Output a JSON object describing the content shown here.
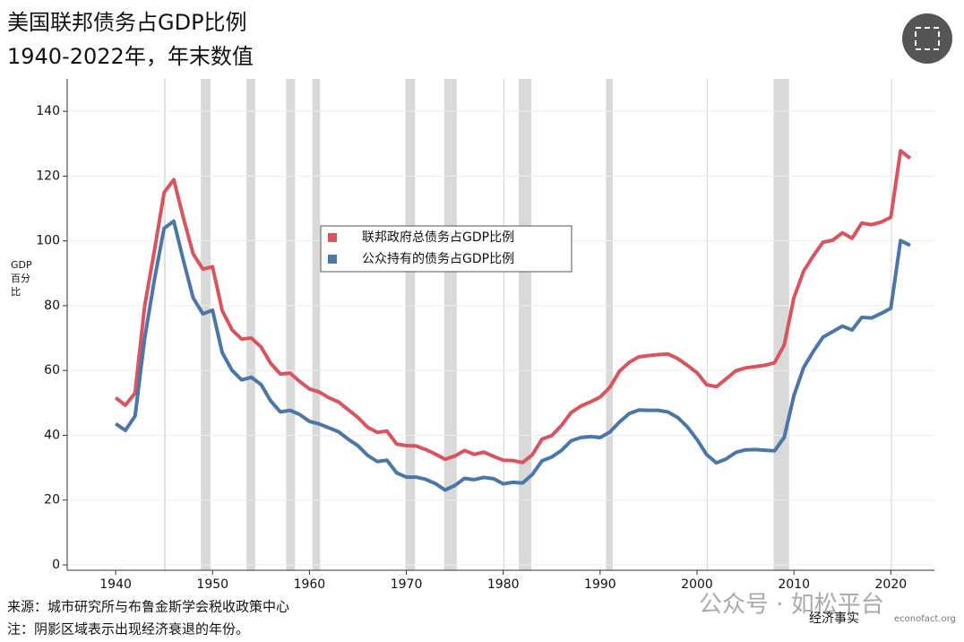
{
  "chart_data": {
    "type": "line",
    "title": [
      "美国联邦债务占GDP比例",
      "1940-2022年，年末数值"
    ],
    "y_label": [
      "GDP",
      "百分",
      "比"
    ],
    "x": [
      1940,
      1941,
      1942,
      1943,
      1944,
      1945,
      1946,
      1947,
      1948,
      1949,
      1950,
      1951,
      1952,
      1953,
      1954,
      1955,
      1956,
      1957,
      1958,
      1959,
      1960,
      1961,
      1962,
      1963,
      1964,
      1965,
      1966,
      1967,
      1968,
      1969,
      1970,
      1971,
      1972,
      1973,
      1974,
      1975,
      1976,
      1977,
      1978,
      1979,
      1980,
      1981,
      1982,
      1983,
      1984,
      1985,
      1986,
      1987,
      1988,
      1989,
      1990,
      1991,
      1992,
      1993,
      1994,
      1995,
      1996,
      1997,
      1998,
      1999,
      2000,
      2001,
      2002,
      2003,
      2004,
      2005,
      2006,
      2007,
      2008,
      2009,
      2010,
      2011,
      2012,
      2013,
      2014,
      2015,
      2016,
      2017,
      2018,
      2019,
      2020,
      2021,
      2022
    ],
    "series": [
      {
        "name": "联邦政府总债务占GDP比例",
        "color": "#d9545c",
        "values": [
          51.6,
          49.3,
          53,
          80,
          97,
          114.9,
          118.9,
          107,
          96,
          91.3,
          92,
          78.5,
          72.6,
          69.7,
          70,
          67.3,
          62.2,
          58.9,
          59.2,
          56.6,
          54.3,
          53.4,
          51.6,
          50.3,
          47.9,
          45.5,
          42.5,
          40.9,
          41.3,
          37.3,
          36.8,
          36.7,
          35.6,
          34.2,
          32.6,
          33.6,
          35.3,
          34.1,
          34.8,
          33.5,
          32.3,
          32.2,
          31.6,
          34,
          38.8,
          39.9,
          43,
          47,
          49,
          50.3,
          51.8,
          54.8,
          59.8,
          62.5,
          64.2,
          64.6,
          64.9,
          65.1,
          63.7,
          61.6,
          59.3,
          55.6,
          55,
          57.4,
          59.9,
          60.8,
          61.2,
          61.6,
          62.4,
          67.9,
          82.5,
          90.7,
          95.4,
          99.6,
          100.2,
          102.5,
          100.8,
          105.5,
          105,
          105.8,
          107.3,
          127.8,
          125.5
        ]
      },
      {
        "name": "公众持有的债务占GDP比例",
        "color": "#4a77a8",
        "values": [
          43.6,
          41.5,
          45.9,
          70,
          88,
          103.9,
          106.1,
          93.9,
          82.4,
          77.5,
          78.6,
          65.5,
          60.1,
          57.1,
          57.9,
          55.7,
          50.6,
          47.2,
          47.7,
          46.4,
          44.3,
          43.5,
          42.3,
          41.1,
          38.8,
          36.8,
          33.8,
          31.9,
          32.3,
          28.4,
          27.1,
          27.1,
          26.4,
          25.1,
          23.1,
          24.5,
          26.7,
          26.3,
          27,
          26.6,
          25,
          25.5,
          25.3,
          27.9,
          32.1,
          33.3,
          35.3,
          38.3,
          39.3,
          39.6,
          39.3,
          41,
          44.1,
          46.7,
          47.8,
          47.7,
          47.7,
          47.2,
          45.5,
          42.6,
          38.7,
          34,
          31.5,
          32.7,
          34.7,
          35.5,
          35.6,
          35.4,
          35.2,
          39.4,
          52.3,
          60.9,
          65.9,
          70.3,
          72,
          73.7,
          72.5,
          76.4,
          76.2,
          77.6,
          79.2,
          100.1,
          98.6
        ]
      }
    ],
    "recessions": [
      [
        1945,
        1945.15
      ],
      [
        1948.8,
        1949.8
      ],
      [
        1953.5,
        1954.4
      ],
      [
        1957.6,
        1958.5
      ],
      [
        1960.3,
        1961.1
      ],
      [
        1969.9,
        1970.9
      ],
      [
        1973.9,
        1975.2
      ],
      [
        1980,
        1980.1
      ],
      [
        1981.6,
        1982.9
      ],
      [
        1990.6,
        1991.3
      ],
      [
        2001,
        2001.1
      ],
      [
        2007.9,
        2009.5
      ],
      [
        2020,
        2020.1
      ]
    ],
    "recession_color": "#d9d9d9",
    "xlim": [
      1935,
      2024.5
    ],
    "xticks": [
      1940,
      1950,
      1960,
      1970,
      1980,
      1990,
      2000,
      2010,
      2020
    ],
    "ylim": [
      0,
      150
    ],
    "yticks": [
      0,
      20,
      40,
      60,
      80,
      100,
      120,
      140
    ],
    "grid": true,
    "footer": [
      "来源：城市研究所与布鲁金斯学会税收政策中心",
      "注：阴影区域表示出现经济衰退的年份。"
    ],
    "brand": "经济事实",
    "site": "econofact.org",
    "watermark": "公众号 · 如松平台"
  }
}
